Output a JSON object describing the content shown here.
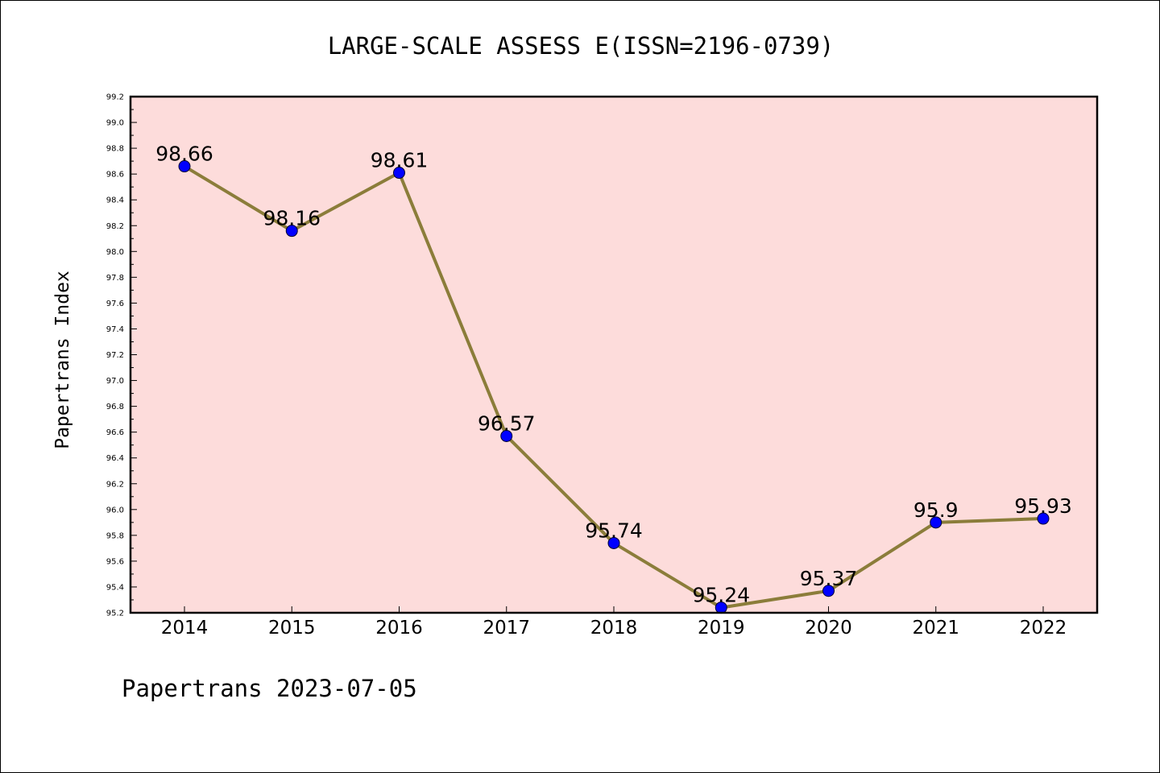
{
  "chart_data": {
    "type": "line",
    "title": "LARGE-SCALE ASSESS E(ISSN=2196-0739)",
    "xlabel": "",
    "ylabel": "Papertrans Index",
    "categories": [
      "2014",
      "2015",
      "2016",
      "2017",
      "2018",
      "2019",
      "2020",
      "2021",
      "2022"
    ],
    "series": [
      {
        "values": [
          98.66,
          98.16,
          98.61,
          96.57,
          95.74,
          95.24,
          95.37,
          95.9,
          95.93
        ]
      }
    ],
    "data_labels": [
      "98.66",
      "98.16",
      "98.61",
      "96.57",
      "95.74",
      "95.24",
      "95.37",
      "95.9",
      "95.93"
    ],
    "ylim": [
      95.2,
      99.2
    ],
    "yticks": [
      95.2,
      95.4,
      95.6,
      95.8,
      96.0,
      96.2,
      96.4,
      96.6,
      96.8,
      97.0,
      97.2,
      97.4,
      97.6,
      97.8,
      98.0,
      98.2,
      98.4,
      98.6,
      98.8,
      99.0,
      99.2
    ],
    "ytick_labels": [
      "95.2",
      "95.4",
      "95.6",
      "95.8",
      "96.0",
      "96.2",
      "96.4",
      "96.6",
      "96.8",
      "97.0",
      "97.2",
      "97.4",
      "97.6",
      "97.8",
      "98.0",
      "98.2",
      "98.4",
      "98.6",
      "98.8",
      "99.0",
      "99.2"
    ],
    "grid": false,
    "legend": "none",
    "colors": {
      "plot_background": "#fddcdb",
      "line": "#8b7d3a",
      "marker": "#0000ff"
    }
  },
  "footer": {
    "text": "Papertrans 2023-07-05"
  }
}
